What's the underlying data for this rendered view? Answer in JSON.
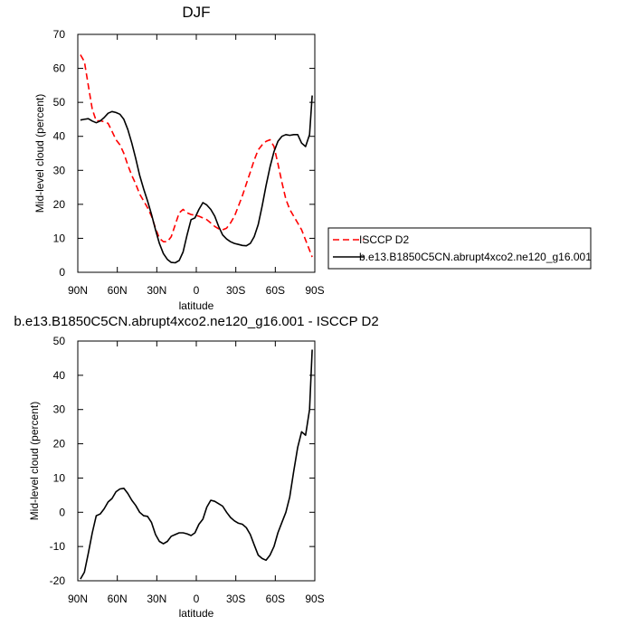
{
  "chart_data": [
    {
      "type": "line",
      "title": "DJF",
      "xlabel": "latitude",
      "ylabel": "Mid-level cloud (percent)",
      "xlim": [
        90,
        -90
      ],
      "ylim": [
        0,
        70
      ],
      "xticks": [
        90,
        60,
        30,
        0,
        -30,
        -60,
        -90
      ],
      "xtick_labels": [
        "90N",
        "60N",
        "30N",
        "0",
        "30S",
        "60S",
        "90S"
      ],
      "yticks": [
        0,
        10,
        20,
        30,
        40,
        50,
        60,
        70
      ],
      "ytick_labels": [
        "0",
        "10",
        "20",
        "30",
        "40",
        "50",
        "60",
        "70"
      ],
      "legend": {
        "placement": "right",
        "entries": [
          "ISCCP D2",
          "b.e13.B1850C5CN.abrupt4xco2.ne120_g16.001"
        ]
      },
      "series": [
        {
          "name": "ISCCP D2",
          "color": "#ff0000",
          "dash": "dashed",
          "x": [
            88,
            85,
            82,
            79,
            76,
            73,
            70,
            67,
            64,
            61,
            58,
            55,
            52,
            49,
            46,
            43,
            40,
            37,
            34,
            31,
            28,
            25,
            22,
            19,
            16,
            13,
            10,
            7,
            4,
            1,
            -2,
            -5,
            -8,
            -11,
            -14,
            -17,
            -20,
            -23,
            -26,
            -29,
            -32,
            -35,
            -38,
            -41,
            -44,
            -47,
            -50,
            -53,
            -56,
            -59,
            -62,
            -65,
            -68,
            -71,
            -74,
            -77,
            -80,
            -83,
            -86,
            -88
          ],
          "values": [
            64,
            62,
            55,
            48,
            44.5,
            44.6,
            44.3,
            43.8,
            41.5,
            39,
            37.5,
            35,
            31.5,
            28.5,
            26,
            23,
            21,
            19,
            16.5,
            13,
            10,
            9,
            9,
            10.5,
            14,
            17.5,
            18.5,
            17.5,
            17,
            16.8,
            16.5,
            16,
            15.5,
            14.5,
            13.5,
            12.8,
            12.5,
            13,
            14.5,
            16.5,
            19.5,
            22.5,
            26,
            29.5,
            33,
            36,
            37.5,
            38.5,
            39,
            37,
            32,
            26.5,
            21.5,
            18.5,
            16.5,
            14.5,
            12.5,
            9.5,
            6.5,
            4.5
          ]
        },
        {
          "name": "b.e13.B1850C5CN.abrupt4xco2.ne120_g16.001",
          "color": "#000000",
          "dash": "solid",
          "x": [
            88,
            85,
            82,
            79,
            76,
            73,
            70,
            67,
            64,
            61,
            58,
            55,
            52,
            49,
            46,
            43,
            40,
            37,
            34,
            31,
            28,
            25,
            22,
            19,
            16,
            13,
            10,
            7,
            4,
            1,
            -2,
            -5,
            -8,
            -11,
            -14,
            -17,
            -20,
            -23,
            -26,
            -29,
            -32,
            -35,
            -38,
            -41,
            -44,
            -47,
            -50,
            -53,
            -56,
            -59,
            -62,
            -65,
            -68,
            -71,
            -74,
            -77,
            -80,
            -83,
            -86,
            -88
          ],
          "values": [
            44.8,
            45,
            45.2,
            44.5,
            44,
            44.5,
            45.5,
            46.8,
            47.3,
            47,
            46.5,
            45,
            42,
            38,
            33.5,
            28.5,
            24.5,
            21,
            17,
            12.5,
            8.5,
            5.5,
            3.8,
            2.9,
            2.8,
            3.5,
            6,
            11,
            15.5,
            16,
            18.5,
            20.5,
            19.8,
            18.5,
            16.5,
            13.5,
            11,
            9.8,
            9,
            8.5,
            8.2,
            7.9,
            7.8,
            8.5,
            10.5,
            14,
            19.5,
            25.5,
            31,
            35.5,
            38.5,
            40,
            40.5,
            40.3,
            40.5,
            40.5,
            38,
            37,
            40.5,
            52
          ]
        }
      ]
    },
    {
      "type": "line",
      "title": "b.e13.B1850C5CN.abrupt4xco2.ne120_g16.001 - ISCCP D2",
      "xlabel": "latitude",
      "ylabel": "Mid-level cloud (percent)",
      "xlim": [
        90,
        -90
      ],
      "ylim": [
        -20,
        50
      ],
      "xticks": [
        90,
        60,
        30,
        0,
        -30,
        -60,
        -90
      ],
      "xtick_labels": [
        "90N",
        "60N",
        "30N",
        "0",
        "30S",
        "60S",
        "90S"
      ],
      "yticks": [
        -20,
        -10,
        0,
        10,
        20,
        30,
        40,
        50
      ],
      "ytick_labels": [
        "-20",
        "-10",
        "0",
        "10",
        "20",
        "30",
        "40",
        "50"
      ],
      "series": [
        {
          "color": "#000000",
          "dash": "solid",
          "x": [
            88,
            85,
            82,
            79,
            76,
            73,
            70,
            67,
            64,
            61,
            58,
            55,
            52,
            49,
            46,
            43,
            40,
            37,
            34,
            31,
            28,
            25,
            22,
            19,
            16,
            13,
            10,
            7,
            4,
            1,
            -2,
            -5,
            -8,
            -11,
            -14,
            -17,
            -20,
            -23,
            -26,
            -29,
            -32,
            -35,
            -38,
            -41,
            -44,
            -47,
            -50,
            -53,
            -56,
            -59,
            -62,
            -65,
            -68,
            -71,
            -74,
            -77,
            -80,
            -83,
            -86,
            -88
          ],
          "values": [
            -19.5,
            -17.5,
            -12,
            -6,
            -1,
            -0.5,
            1,
            3,
            4,
            6,
            6.8,
            7,
            5.5,
            3.5,
            2,
            0,
            -1,
            -1.2,
            -3,
            -6.5,
            -8.5,
            -9.2,
            -8.5,
            -7,
            -6.5,
            -6,
            -6,
            -6.3,
            -6.8,
            -6,
            -3.5,
            -2,
            1.5,
            3.5,
            3.2,
            2.5,
            1.8,
            0,
            -1.5,
            -2.5,
            -3.2,
            -3.5,
            -4.5,
            -6.5,
            -9.5,
            -12.5,
            -13.5,
            -14,
            -12.5,
            -10,
            -6,
            -3,
            0,
            4.5,
            12,
            19,
            23.5,
            22.5,
            30,
            47.5
          ]
        }
      ]
    }
  ]
}
